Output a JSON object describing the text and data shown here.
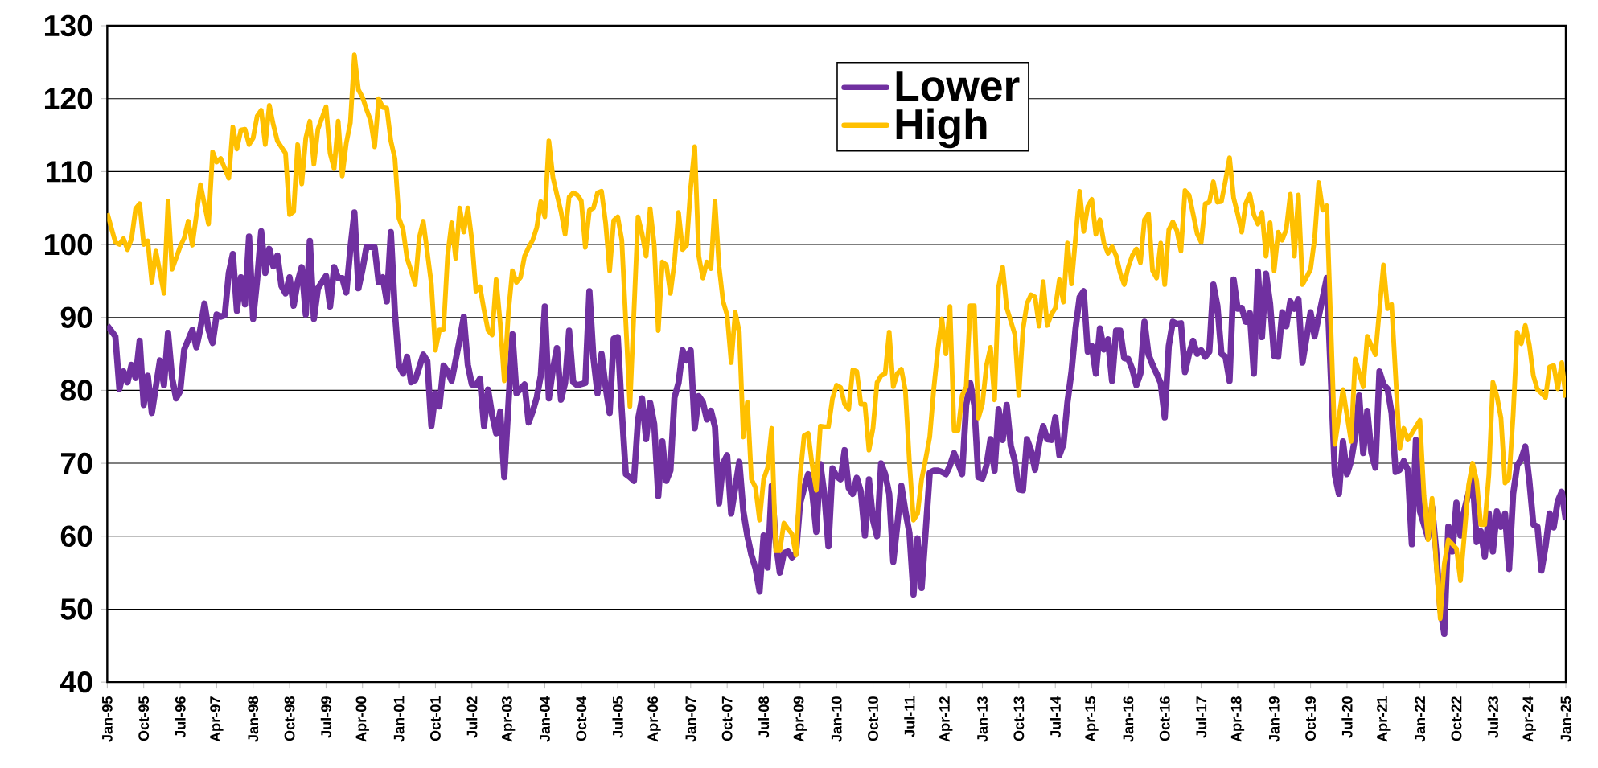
{
  "chart_data": {
    "type": "line",
    "xlim": [
      "1995-01",
      "2025-01"
    ],
    "ylim": [
      40,
      130
    ],
    "yticks": [
      40,
      50,
      60,
      70,
      80,
      90,
      100,
      110,
      120,
      130
    ],
    "xticks": [
      {
        "value": "1995-01",
        "label": "Jan-95"
      },
      {
        "value": "1995-10",
        "label": "Oct-95"
      },
      {
        "value": "1996-07",
        "label": "Jul-96"
      },
      {
        "value": "1997-04",
        "label": "Apr-97"
      },
      {
        "value": "1998-01",
        "label": "Jan-98"
      },
      {
        "value": "1998-10",
        "label": "Oct-98"
      },
      {
        "value": "1999-07",
        "label": "Jul-99"
      },
      {
        "value": "2000-04",
        "label": "Apr-00"
      },
      {
        "value": "2001-01",
        "label": "Jan-01"
      },
      {
        "value": "2001-10",
        "label": "Oct-01"
      },
      {
        "value": "2002-07",
        "label": "Jul-02"
      },
      {
        "value": "2003-04",
        "label": "Apr-03"
      },
      {
        "value": "2004-01",
        "label": "Jan-04"
      },
      {
        "value": "2004-10",
        "label": "Oct-04"
      },
      {
        "value": "2005-07",
        "label": "Jul-05"
      },
      {
        "value": "2006-04",
        "label": "Apr-06"
      },
      {
        "value": "2007-01",
        "label": "Jan-07"
      },
      {
        "value": "2007-10",
        "label": "Oct-07"
      },
      {
        "value": "2008-07",
        "label": "Jul-08"
      },
      {
        "value": "2009-04",
        "label": "Apr-09"
      },
      {
        "value": "2010-01",
        "label": "Jan-10"
      },
      {
        "value": "2010-10",
        "label": "Oct-10"
      },
      {
        "value": "2011-07",
        "label": "Jul-11"
      },
      {
        "value": "2012-04",
        "label": "Apr-12"
      },
      {
        "value": "2013-01",
        "label": "Jan-13"
      },
      {
        "value": "2013-10",
        "label": "Oct-13"
      },
      {
        "value": "2014-07",
        "label": "Jul-14"
      },
      {
        "value": "2015-04",
        "label": "Apr-15"
      },
      {
        "value": "2016-01",
        "label": "Jan-16"
      },
      {
        "value": "2016-10",
        "label": "Oct-16"
      },
      {
        "value": "2017-07",
        "label": "Jul-17"
      },
      {
        "value": "2018-04",
        "label": "Apr-18"
      },
      {
        "value": "2019-01",
        "label": "Jan-19"
      },
      {
        "value": "2019-10",
        "label": "Oct-19"
      },
      {
        "value": "2020-07",
        "label": "Jul-20"
      },
      {
        "value": "2021-04",
        "label": "Apr-21"
      },
      {
        "value": "2022-01",
        "label": "Jan-22"
      },
      {
        "value": "2022-10",
        "label": "Oct-22"
      },
      {
        "value": "2023-07",
        "label": "Jul-23"
      },
      {
        "value": "2024-04",
        "label": "Apr-24"
      },
      {
        "value": "2025-01",
        "label": "Jan-25"
      }
    ],
    "grid": "y",
    "legend": "top",
    "marker": "none",
    "line_style": "solid",
    "series": [
      {
        "name": "Lower",
        "color": "#7030a0",
        "x": [
          "1995-01",
          "1995-03",
          "1995-04",
          "1995-05",
          "1995-06",
          "1995-07",
          "1995-08",
          "1995-09",
          "1995-10",
          "1995-11",
          "1995-12",
          "1996-02",
          "1996-03",
          "1996-04",
          "1996-05",
          "1996-06",
          "1996-07",
          "1996-08",
          "1996-10",
          "1996-11",
          "1996-12",
          "1997-01",
          "1997-02",
          "1997-03",
          "1997-04",
          "1997-05",
          "1997-06",
          "1997-07",
          "1997-08",
          "1997-09",
          "1997-10",
          "1997-11",
          "1997-12",
          "1998-01",
          "1998-02",
          "1998-03",
          "1998-04",
          "1998-05",
          "1998-06",
          "1998-07",
          "1998-08",
          "1998-09",
          "1998-10",
          "1998-11",
          "1998-12",
          "1999-01",
          "1999-02",
          "1999-03",
          "1999-04",
          "1999-05",
          "1999-07",
          "1999-08",
          "1999-09",
          "1999-10",
          "1999-11",
          "1999-12",
          "2000-01",
          "2000-02",
          "2000-03",
          "2000-04",
          "2000-05",
          "2000-07",
          "2000-08",
          "2000-09",
          "2000-10",
          "2000-11",
          "2000-12",
          "2001-01",
          "2001-02",
          "2001-03",
          "2001-04",
          "2001-05",
          "2001-07",
          "2001-08",
          "2001-09",
          "2001-10",
          "2001-11",
          "2001-12",
          "2002-01",
          "2002-02",
          "2002-04",
          "2002-05",
          "2002-06",
          "2002-07",
          "2002-08",
          "2002-09",
          "2002-10",
          "2002-11",
          "2002-12",
          "2003-01",
          "2003-02",
          "2003-03",
          "2003-05",
          "2003-06",
          "2003-07",
          "2003-08",
          "2003-09",
          "2003-10",
          "2003-11",
          "2003-12",
          "2004-01",
          "2004-02",
          "2004-03",
          "2004-04",
          "2004-05",
          "2004-06",
          "2004-07",
          "2004-08",
          "2004-09",
          "2004-11",
          "2004-12",
          "2005-01",
          "2005-02",
          "2005-03",
          "2005-04",
          "2005-05",
          "2005-06",
          "2005-07",
          "2005-08",
          "2005-09",
          "2005-10",
          "2005-11",
          "2005-12",
          "2006-01",
          "2006-02",
          "2006-03",
          "2006-04",
          "2006-05",
          "2006-06",
          "2006-07",
          "2006-08",
          "2006-09",
          "2006-10",
          "2006-11",
          "2006-12",
          "2007-01",
          "2007-02",
          "2007-03",
          "2007-04",
          "2007-05",
          "2007-06",
          "2007-07",
          "2007-08",
          "2007-09",
          "2007-10",
          "2007-11",
          "2008-01",
          "2008-02",
          "2008-03",
          "2008-04",
          "2008-05",
          "2008-06",
          "2008-07",
          "2008-08",
          "2008-09",
          "2008-10",
          "2008-11",
          "2008-12",
          "2009-01",
          "2009-02",
          "2009-03",
          "2009-04",
          "2009-05",
          "2009-06",
          "2009-07",
          "2009-08",
          "2009-09",
          "2009-10",
          "2009-11",
          "2009-12",
          "2010-01",
          "2010-02",
          "2010-03",
          "2010-04",
          "2010-05",
          "2010-06",
          "2010-07",
          "2010-08",
          "2010-09",
          "2010-10",
          "2010-11",
          "2010-12",
          "2011-01",
          "2011-02",
          "2011-03",
          "2011-04",
          "2011-05",
          "2011-06",
          "2011-07",
          "2011-08",
          "2011-09",
          "2011-10",
          "2011-11",
          "2011-12",
          "2012-01",
          "2012-02",
          "2012-03",
          "2012-04",
          "2012-05",
          "2012-06",
          "2012-07",
          "2012-08",
          "2012-09",
          "2012-10",
          "2012-11",
          "2012-12",
          "2013-01",
          "2013-02",
          "2013-03",
          "2013-04",
          "2013-05",
          "2013-06",
          "2013-07",
          "2013-08",
          "2013-09",
          "2013-10",
          "2013-11",
          "2013-12",
          "2014-01",
          "2014-02",
          "2014-03",
          "2014-04",
          "2014-05",
          "2014-06",
          "2014-07",
          "2014-08",
          "2014-09",
          "2014-10",
          "2014-11",
          "2014-12",
          "2015-01",
          "2015-02",
          "2015-03",
          "2015-04",
          "2015-05",
          "2015-06",
          "2015-07",
          "2015-08",
          "2015-09",
          "2015-10",
          "2015-11",
          "2015-12",
          "2016-01",
          "2016-02",
          "2016-03",
          "2016-04",
          "2016-05",
          "2016-06",
          "2016-07",
          "2016-08",
          "2016-09",
          "2016-10",
          "2016-11",
          "2016-12",
          "2017-01",
          "2017-02",
          "2017-03",
          "2017-04",
          "2017-05",
          "2017-06",
          "2017-07",
          "2017-08",
          "2017-09",
          "2017-10",
          "2017-11",
          "2017-12",
          "2018-01",
          "2018-02",
          "2018-03",
          "2018-04",
          "2018-05",
          "2018-06",
          "2018-07",
          "2018-08",
          "2018-09",
          "2018-10",
          "2018-11",
          "2018-12",
          "2019-01",
          "2019-02",
          "2019-03",
          "2019-04",
          "2019-05",
          "2019-06",
          "2019-07",
          "2019-08",
          "2019-10",
          "2019-11",
          "2020-02",
          "2020-04",
          "2020-05",
          "2020-06",
          "2020-07",
          "2020-08",
          "2020-09",
          "2020-10",
          "2020-11",
          "2020-12",
          "2021-01",
          "2021-02",
          "2021-03",
          "2021-04",
          "2021-05",
          "2021-06",
          "2021-07",
          "2021-08",
          "2021-09",
          "2021-10",
          "2021-11",
          "2021-12",
          "2022-01",
          "2022-03",
          "2022-04",
          "2022-05",
          "2022-06",
          "2022-07",
          "2022-08",
          "2022-09",
          "2022-10",
          "2022-11",
          "2022-12",
          "2023-02",
          "2023-03",
          "2023-04",
          "2023-05",
          "2023-06",
          "2023-07",
          "2023-08",
          "2023-09",
          "2023-10",
          "2023-11",
          "2023-12",
          "2024-01",
          "2024-02",
          "2024-03",
          "2024-04",
          "2024-05",
          "2024-06",
          "2024-07",
          "2024-08",
          "2024-09",
          "2024-10",
          "2024-11",
          "2024-12",
          "2025-01"
        ],
        "values": [
          88.9,
          87.4,
          80.2,
          82.6,
          81.1,
          83.5,
          81.7,
          86.8,
          78.0,
          82.0,
          76.9,
          84.1,
          80.7,
          87.9,
          81.7,
          78.9,
          79.9,
          85.6,
          88.3,
          85.9,
          88.5,
          91.9,
          88.3,
          86.5,
          90.4,
          90.1,
          90.3,
          96.1,
          98.7,
          90.9,
          95.5,
          91.8,
          101.1,
          89.8,
          95.2,
          101.8,
          96.1,
          99.4,
          97.0,
          98.5,
          94.3,
          93.3,
          95.5,
          91.6,
          94.9,
          96.9,
          90.4,
          100.5,
          89.8,
          94.0,
          95.7,
          91.5,
          96.9,
          95.4,
          95.4,
          93.4,
          99.4,
          104.4,
          94.0,
          96.6,
          99.7,
          99.6,
          94.8,
          95.5,
          92.2,
          101.7,
          90.7,
          83.4,
          82.3,
          84.6,
          81.1,
          81.4,
          84.9,
          84.0,
          75.1,
          79.6,
          77.8,
          83.4,
          82.6,
          81.3,
          87.0,
          90.1,
          83.5,
          80.8,
          80.7,
          81.6,
          75.1,
          80.1,
          76.6,
          74.1,
          77.1,
          68.1,
          87.7,
          79.6,
          80.2,
          80.8,
          75.6,
          77.1,
          79.0,
          82.0,
          91.5,
          78.9,
          82.9,
          85.8,
          78.7,
          81.0,
          88.2,
          81.1,
          80.7,
          81.0,
          93.6,
          84.4,
          79.6,
          85.0,
          80.5,
          76.9,
          87.1,
          87.3,
          77.2,
          68.5,
          68.1,
          67.6,
          76.0,
          78.9,
          73.3,
          78.3,
          75.4,
          65.5,
          73.0,
          67.6,
          69.0,
          79.0,
          81.0,
          85.5,
          84.1,
          85.5,
          74.8,
          79.2,
          78.4,
          76.0,
          77.2,
          75.0,
          64.5,
          70.0,
          71.1,
          63.1,
          70.2,
          63.4,
          60.0,
          57.4,
          55.6,
          52.4,
          60.1,
          55.7,
          66.9,
          59.2,
          55.0,
          57.7,
          57.9,
          57.1,
          57.7,
          64.5,
          66.6,
          68.5,
          66.0,
          60.6,
          69.9,
          65.7,
          58.6,
          69.3,
          68.2,
          67.8,
          71.8,
          66.6,
          65.8,
          68.0,
          66.1,
          60.1,
          67.8,
          62.2,
          60.0,
          70.0,
          68.5,
          65.8,
          56.5,
          61.6,
          66.9,
          63.4,
          60.4,
          52.0,
          59.7,
          52.9,
          60.7,
          68.7,
          69.0,
          69.0,
          68.8,
          68.5,
          69.7,
          71.4,
          70.0,
          68.5,
          78.0,
          81.0,
          78.0,
          68.1,
          67.9,
          69.7,
          73.3,
          69.0,
          77.4,
          73.2,
          78.0,
          72.4,
          70.3,
          66.4,
          66.3,
          73.3,
          71.8,
          69.1,
          72.7,
          75.1,
          73.3,
          73.2,
          76.3,
          71.1,
          72.6,
          78.4,
          82.6,
          88.5,
          92.8,
          93.6,
          85.3,
          86.1,
          82.3,
          88.5,
          85.6,
          87.0,
          81.3,
          88.2,
          88.2,
          84.4,
          84.3,
          82.9,
          80.7,
          82.3,
          89.4,
          84.9,
          83.5,
          82.3,
          81.0,
          76.3,
          86.1,
          89.4,
          89.1,
          89.2,
          82.5,
          85.0,
          86.8,
          85.0,
          85.5,
          84.6,
          85.3,
          94.5,
          91.6,
          85.0,
          84.6,
          81.3,
          95.2,
          91.2,
          91.3,
          89.4,
          90.6,
          82.3,
          96.3,
          87.3,
          96.0,
          91.9,
          84.7,
          84.6,
          90.7,
          88.8,
          92.2,
          91.2,
          92.5,
          83.8,
          90.7,
          87.4,
          95.4,
          68.4,
          65.8,
          73.0,
          68.5,
          70.3,
          73.6,
          79.3,
          71.4,
          77.2,
          71.5,
          69.4,
          82.6,
          80.8,
          80.2,
          76.9,
          68.8,
          69.1,
          70.3,
          69.1,
          58.9,
          73.2,
          63.4,
          59.8,
          64.0,
          58.0,
          50.2,
          46.6,
          61.3,
          57.9,
          64.6,
          60.1,
          63.7,
          68.1,
          59.2,
          60.7,
          57.2,
          63.1,
          57.9,
          63.4,
          61.3,
          63.1,
          55.5,
          65.8,
          69.7,
          70.6,
          72.3,
          67.6,
          61.6,
          61.3,
          55.3,
          58.6,
          63.1,
          61.2,
          64.8,
          66.1,
          62.2
        ]
      },
      {
        "name": "High",
        "color": "#ffc000",
        "x": [
          "1995-01",
          "1995-03",
          "1995-04",
          "1995-05",
          "1995-06",
          "1995-07",
          "1995-08",
          "1995-09",
          "1995-10",
          "1995-11",
          "1995-12",
          "1996-01",
          "1996-03",
          "1996-04",
          "1996-05",
          "1996-07",
          "1996-08",
          "1996-09",
          "1996-10",
          "1996-12",
          "1997-02",
          "1997-03",
          "1997-04",
          "1997-05",
          "1997-07",
          "1997-08",
          "1997-09",
          "1997-10",
          "1997-11",
          "1997-12",
          "1998-01",
          "1998-02",
          "1998-03",
          "1998-04",
          "1998-05",
          "1998-06",
          "1998-07",
          "1998-09",
          "1998-10",
          "1998-11",
          "1998-12",
          "1999-01",
          "1999-02",
          "1999-03",
          "1999-04",
          "1999-05",
          "1999-07",
          "1999-08",
          "1999-09",
          "1999-10",
          "1999-11",
          "1999-12",
          "2000-01",
          "2000-02",
          "2000-03",
          "2000-04",
          "2000-05",
          "2000-06",
          "2000-07",
          "2000-08",
          "2000-09",
          "2000-10",
          "2000-11",
          "2000-12",
          "2001-01",
          "2001-02",
          "2001-03",
          "2001-04",
          "2001-05",
          "2001-06",
          "2001-07",
          "2001-09",
          "2001-10",
          "2001-11",
          "2001-12",
          "2002-01",
          "2002-02",
          "2002-03",
          "2002-04",
          "2002-05",
          "2002-06",
          "2002-07",
          "2002-08",
          "2002-09",
          "2002-10",
          "2002-11",
          "2002-12",
          "2003-01",
          "2003-02",
          "2003-03",
          "2003-04",
          "2003-05",
          "2003-06",
          "2003-07",
          "2003-08",
          "2003-09",
          "2003-10",
          "2003-11",
          "2003-12",
          "2004-01",
          "2004-02",
          "2004-03",
          "2004-04",
          "2004-05",
          "2004-06",
          "2004-07",
          "2004-08",
          "2004-09",
          "2004-10",
          "2004-11",
          "2004-12",
          "2005-01",
          "2005-02",
          "2005-03",
          "2005-04",
          "2005-05",
          "2005-06",
          "2005-07",
          "2005-08",
          "2005-10",
          "2005-12",
          "2006-01",
          "2006-02",
          "2006-03",
          "2006-04",
          "2006-05",
          "2006-06",
          "2006-07",
          "2006-08",
          "2006-09",
          "2006-10",
          "2006-11",
          "2006-12",
          "2007-01",
          "2007-02",
          "2007-03",
          "2007-04",
          "2007-05",
          "2007-06",
          "2007-07",
          "2007-08",
          "2007-09",
          "2007-10",
          "2007-11",
          "2007-12",
          "2008-01",
          "2008-02",
          "2008-03",
          "2008-04",
          "2008-05",
          "2008-06",
          "2008-07",
          "2008-08",
          "2008-09",
          "2008-10",
          "2008-11",
          "2008-12",
          "2009-01",
          "2009-02",
          "2009-03",
          "2009-04",
          "2009-05",
          "2009-06",
          "2009-07",
          "2009-08",
          "2009-09",
          "2009-10",
          "2009-11",
          "2009-12",
          "2010-01",
          "2010-02",
          "2010-03",
          "2010-04",
          "2010-05",
          "2010-06",
          "2010-07",
          "2010-08",
          "2010-09",
          "2010-10",
          "2010-11",
          "2010-12",
          "2011-01",
          "2011-02",
          "2011-03",
          "2011-04",
          "2011-05",
          "2011-06",
          "2011-07",
          "2011-08",
          "2011-09",
          "2011-10",
          "2011-11",
          "2011-12",
          "2012-01",
          "2012-02",
          "2012-03",
          "2012-04",
          "2012-05",
          "2012-06",
          "2012-07",
          "2012-08",
          "2012-09",
          "2012-10",
          "2012-11",
          "2012-12",
          "2013-01",
          "2013-02",
          "2013-03",
          "2013-04",
          "2013-05",
          "2013-06",
          "2013-07",
          "2013-08",
          "2013-09",
          "2013-10",
          "2013-11",
          "2013-12",
          "2014-01",
          "2014-02",
          "2014-03",
          "2014-04",
          "2014-05",
          "2014-06",
          "2014-07",
          "2014-08",
          "2014-09",
          "2014-10",
          "2014-11",
          "2015-01",
          "2015-02",
          "2015-03",
          "2015-04",
          "2015-05",
          "2015-06",
          "2015-07",
          "2015-08",
          "2015-09",
          "2015-10",
          "2015-11",
          "2015-12",
          "2016-01",
          "2016-02",
          "2016-03",
          "2016-04",
          "2016-05",
          "2016-06",
          "2016-07",
          "2016-08",
          "2016-09",
          "2016-10",
          "2016-11",
          "2016-12",
          "2017-01",
          "2017-02",
          "2017-03",
          "2017-04",
          "2017-05",
          "2017-06",
          "2017-07",
          "2017-08",
          "2017-09",
          "2017-10",
          "2017-11",
          "2017-12",
          "2018-01",
          "2018-02",
          "2018-03",
          "2018-04",
          "2018-05",
          "2018-06",
          "2018-07",
          "2018-08",
          "2018-09",
          "2018-10",
          "2018-11",
          "2018-12",
          "2019-01",
          "2019-02",
          "2019-03",
          "2019-04",
          "2019-05",
          "2019-06",
          "2019-07",
          "2019-08",
          "2019-09",
          "2019-10",
          "2019-11",
          "2019-12",
          "2020-01",
          "2020-02",
          "2020-04",
          "2020-06",
          "2020-08",
          "2020-09",
          "2020-11",
          "2020-12",
          "2021-02",
          "2021-04",
          "2021-05",
          "2021-06",
          "2021-08",
          "2021-09",
          "2021-10",
          "2021-11",
          "2022-01",
          "2022-02",
          "2022-03",
          "2022-04",
          "2022-05",
          "2022-06",
          "2022-07",
          "2022-08",
          "2022-10",
          "2022-11",
          "2023-01",
          "2023-02",
          "2023-03",
          "2023-04",
          "2023-05",
          "2023-06",
          "2023-07",
          "2023-08",
          "2023-09",
          "2023-10",
          "2023-11",
          "2023-12",
          "2024-01",
          "2024-02",
          "2024-03",
          "2024-04",
          "2024-05",
          "2024-06",
          "2024-07",
          "2024-08",
          "2024-09",
          "2024-10",
          "2024-11",
          "2024-12",
          "2025-01"
        ],
        "values": [
          104.3,
          100.3,
          100.0,
          100.8,
          99.3,
          100.8,
          104.9,
          105.6,
          100.0,
          100.5,
          94.8,
          99.1,
          93.3,
          105.9,
          96.6,
          99.7,
          100.9,
          103.2,
          99.9,
          108.2,
          102.8,
          112.7,
          111.3,
          111.8,
          109.1,
          116.1,
          113.1,
          115.7,
          115.8,
          113.7,
          114.6,
          117.6,
          118.4,
          113.7,
          119.1,
          116.4,
          114.2,
          112.5,
          104.1,
          104.5,
          113.7,
          108.3,
          114.6,
          116.9,
          111.0,
          115.8,
          118.9,
          112.5,
          110.4,
          116.9,
          109.4,
          113.9,
          116.7,
          126.0,
          121.2,
          120.2,
          118.5,
          117.0,
          113.4,
          120.0,
          118.8,
          118.7,
          114.2,
          111.8,
          103.6,
          102.1,
          98.1,
          96.4,
          94.5,
          100.9,
          103.2,
          94.6,
          85.5,
          88.3,
          88.3,
          98.4,
          103.0,
          98.1,
          105.0,
          101.7,
          105.0,
          100.6,
          93.6,
          94.2,
          91.0,
          88.2,
          87.6,
          95.2,
          89.2,
          81.3,
          90.6,
          96.4,
          94.8,
          95.5,
          98.4,
          99.6,
          100.6,
          102.3,
          105.9,
          103.8,
          114.2,
          109.2,
          106.8,
          104.5,
          101.4,
          106.5,
          107.1,
          106.8,
          106.0,
          99.6,
          104.7,
          105.0,
          107.1,
          107.3,
          103.0,
          96.4,
          103.3,
          103.8,
          100.6,
          77.8,
          103.8,
          101.5,
          98.4,
          104.9,
          100.0,
          88.2,
          97.6,
          97.2,
          93.3,
          97.6,
          104.4,
          99.3,
          99.9,
          107.8,
          113.4,
          98.4,
          95.4,
          97.6,
          96.7,
          105.9,
          97.0,
          92.2,
          90.3,
          83.8,
          90.7,
          88.0,
          73.6,
          78.4,
          67.8,
          66.7,
          62.2,
          67.8,
          69.4,
          74.8,
          58.0,
          58.0,
          61.8,
          61.0,
          60.3,
          57.4,
          68.2,
          73.8,
          74.1,
          69.7,
          66.3,
          75.1,
          75.0,
          75.0,
          78.9,
          80.7,
          80.4,
          78.1,
          77.4,
          82.8,
          82.6,
          78.1,
          78.1,
          71.8,
          74.8,
          81.1,
          82.0,
          82.3,
          88.0,
          80.5,
          82.3,
          82.9,
          79.9,
          70.0,
          62.2,
          63.1,
          67.8,
          70.6,
          73.6,
          80.2,
          85.6,
          89.8,
          85.0,
          91.5,
          74.5,
          74.5,
          79.3,
          80.5,
          91.6,
          91.6,
          76.2,
          78.1,
          83.4,
          85.9,
          78.7,
          94.2,
          96.9,
          91.3,
          89.5,
          87.7,
          79.3,
          88.3,
          91.9,
          93.1,
          92.8,
          88.8,
          94.9,
          88.9,
          90.4,
          91.3,
          95.2,
          92.1,
          100.2,
          94.6,
          107.3,
          101.8,
          105.2,
          106.2,
          101.4,
          103.4,
          100.2,
          98.8,
          99.7,
          98.5,
          96.1,
          94.5,
          96.9,
          98.5,
          99.4,
          97.5,
          103.4,
          104.2,
          96.4,
          95.4,
          100.2,
          94.5,
          102.0,
          103.1,
          101.9,
          99.1,
          107.4,
          106.8,
          104.2,
          101.5,
          100.3,
          105.6,
          105.8,
          108.6,
          105.8,
          105.9,
          108.8,
          111.9,
          106.4,
          104.2,
          101.7,
          105.6,
          106.9,
          104.1,
          102.8,
          104.4,
          98.4,
          103.0,
          96.4,
          101.7,
          100.6,
          102.1,
          106.9,
          98.4,
          106.8,
          94.5,
          95.5,
          96.6,
          100.8,
          108.5,
          104.7,
          105.3,
          72.6,
          80.1,
          73.0,
          84.3,
          80.5,
          87.4,
          84.9,
          97.2,
          91.2,
          91.8,
          72.0,
          74.8,
          73.2,
          74.1,
          75.9,
          65.5,
          59.5,
          65.2,
          56.2,
          48.7,
          56.2,
          59.5,
          58.3,
          53.9,
          67.0,
          70.0,
          67.6,
          61.6,
          61.6,
          68.4,
          81.1,
          79.2,
          76.2,
          67.3,
          67.9,
          76.6,
          88.0,
          86.4,
          88.9,
          86.2,
          82.0,
          80.1,
          79.6,
          79.0,
          83.2,
          83.4,
          80.2,
          83.8,
          79.0
        ]
      }
    ]
  }
}
